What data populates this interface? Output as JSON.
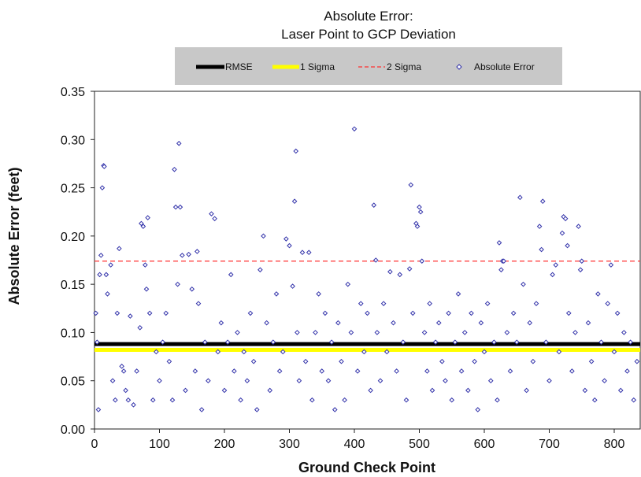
{
  "chart_data": {
    "type": "scatter",
    "title_lines": [
      "Absolute Error:",
      "Laser Point to GCP  Deviation"
    ],
    "xlabel": "Ground Check Point",
    "ylabel": "Absolute  Error  (feet)",
    "xlim": [
      0,
      840
    ],
    "ylim": [
      0,
      0.35
    ],
    "x_ticks": [
      0,
      100,
      200,
      300,
      400,
      500,
      600,
      700,
      800
    ],
    "y_ticks": [
      "0.00",
      "0.05",
      "0.10",
      "0.15",
      "0.20",
      "0.25",
      "0.30",
      "0.35"
    ],
    "grid": false,
    "legend_position": "top",
    "legend_bg": "#c8c8c8",
    "reference_lines": [
      {
        "name": "RMSE",
        "value": 0.088,
        "color": "#000000",
        "style": "solid"
      },
      {
        "name": "1 Sigma",
        "value": 0.082,
        "color": "#ffff00",
        "style": "solid"
      },
      {
        "name": "2 Sigma",
        "value": 0.174,
        "color": "#ff3333",
        "style": "dashed"
      }
    ],
    "series": [
      {
        "name": "Absolute Error",
        "color": "#3333aa",
        "marker": "diamond",
        "points": [
          [
            2,
            0.12
          ],
          [
            4,
            0.09
          ],
          [
            6,
            0.02
          ],
          [
            8,
            0.16
          ],
          [
            10,
            0.18
          ],
          [
            12,
            0.25
          ],
          [
            14,
            0.273
          ],
          [
            15,
            0.272
          ],
          [
            18,
            0.16
          ],
          [
            20,
            0.14
          ],
          [
            25,
            0.17
          ],
          [
            28,
            0.05
          ],
          [
            32,
            0.03
          ],
          [
            35,
            0.12
          ],
          [
            38,
            0.187
          ],
          [
            42,
            0.065
          ],
          [
            45,
            0.06
          ],
          [
            48,
            0.04
          ],
          [
            52,
            0.03
          ],
          [
            55,
            0.117
          ],
          [
            60,
            0.025
          ],
          [
            65,
            0.06
          ],
          [
            70,
            0.105
          ],
          [
            72,
            0.213
          ],
          [
            75,
            0.21
          ],
          [
            78,
            0.17
          ],
          [
            80,
            0.145
          ],
          [
            82,
            0.219
          ],
          [
            85,
            0.12
          ],
          [
            90,
            0.03
          ],
          [
            95,
            0.08
          ],
          [
            100,
            0.05
          ],
          [
            105,
            0.09
          ],
          [
            110,
            0.12
          ],
          [
            115,
            0.07
          ],
          [
            120,
            0.03
          ],
          [
            123,
            0.269
          ],
          [
            125,
            0.23
          ],
          [
            128,
            0.15
          ],
          [
            130,
            0.296
          ],
          [
            132,
            0.23
          ],
          [
            135,
            0.18
          ],
          [
            140,
            0.04
          ],
          [
            145,
            0.181
          ],
          [
            150,
            0.145
          ],
          [
            155,
            0.06
          ],
          [
            158,
            0.184
          ],
          [
            160,
            0.13
          ],
          [
            165,
            0.02
          ],
          [
            170,
            0.09
          ],
          [
            175,
            0.05
          ],
          [
            180,
            0.223
          ],
          [
            185,
            0.218
          ],
          [
            190,
            0.08
          ],
          [
            195,
            0.11
          ],
          [
            200,
            0.04
          ],
          [
            205,
            0.09
          ],
          [
            210,
            0.16
          ],
          [
            215,
            0.06
          ],
          [
            220,
            0.1
          ],
          [
            225,
            0.03
          ],
          [
            230,
            0.08
          ],
          [
            235,
            0.05
          ],
          [
            240,
            0.12
          ],
          [
            245,
            0.07
          ],
          [
            250,
            0.02
          ],
          [
            255,
            0.165
          ],
          [
            260,
            0.2
          ],
          [
            265,
            0.11
          ],
          [
            270,
            0.04
          ],
          [
            275,
            0.09
          ],
          [
            280,
            0.14
          ],
          [
            285,
            0.06
          ],
          [
            290,
            0.08
          ],
          [
            295,
            0.197
          ],
          [
            300,
            0.19
          ],
          [
            305,
            0.148
          ],
          [
            308,
            0.236
          ],
          [
            310,
            0.288
          ],
          [
            312,
            0.1
          ],
          [
            315,
            0.05
          ],
          [
            320,
            0.183
          ],
          [
            325,
            0.07
          ],
          [
            330,
            0.183
          ],
          [
            335,
            0.03
          ],
          [
            340,
            0.1
          ],
          [
            345,
            0.14
          ],
          [
            350,
            0.06
          ],
          [
            355,
            0.12
          ],
          [
            360,
            0.05
          ],
          [
            365,
            0.09
          ],
          [
            370,
            0.02
          ],
          [
            375,
            0.11
          ],
          [
            380,
            0.07
          ],
          [
            385,
            0.03
          ],
          [
            390,
            0.15
          ],
          [
            395,
            0.1
          ],
          [
            400,
            0.311
          ],
          [
            405,
            0.06
          ],
          [
            410,
            0.13
          ],
          [
            415,
            0.08
          ],
          [
            420,
            0.12
          ],
          [
            425,
            0.04
          ],
          [
            430,
            0.232
          ],
          [
            433,
            0.175
          ],
          [
            435,
            0.1
          ],
          [
            440,
            0.05
          ],
          [
            445,
            0.13
          ],
          [
            450,
            0.08
          ],
          [
            455,
            0.163
          ],
          [
            460,
            0.11
          ],
          [
            465,
            0.06
          ],
          [
            470,
            0.16
          ],
          [
            475,
            0.09
          ],
          [
            480,
            0.03
          ],
          [
            485,
            0.166
          ],
          [
            487,
            0.253
          ],
          [
            490,
            0.12
          ],
          [
            495,
            0.213
          ],
          [
            497,
            0.21
          ],
          [
            500,
            0.23
          ],
          [
            502,
            0.225
          ],
          [
            504,
            0.174
          ],
          [
            508,
            0.1
          ],
          [
            512,
            0.06
          ],
          [
            516,
            0.13
          ],
          [
            520,
            0.04
          ],
          [
            525,
            0.09
          ],
          [
            530,
            0.11
          ],
          [
            535,
            0.07
          ],
          [
            540,
            0.05
          ],
          [
            545,
            0.12
          ],
          [
            550,
            0.03
          ],
          [
            555,
            0.09
          ],
          [
            560,
            0.14
          ],
          [
            565,
            0.06
          ],
          [
            570,
            0.1
          ],
          [
            575,
            0.04
          ],
          [
            580,
            0.12
          ],
          [
            585,
            0.07
          ],
          [
            590,
            0.02
          ],
          [
            595,
            0.11
          ],
          [
            600,
            0.08
          ],
          [
            605,
            0.13
          ],
          [
            610,
            0.05
          ],
          [
            615,
            0.09
          ],
          [
            620,
            0.03
          ],
          [
            623,
            0.193
          ],
          [
            626,
            0.165
          ],
          [
            628,
            0.174
          ],
          [
            630,
            0.174
          ],
          [
            635,
            0.1
          ],
          [
            640,
            0.06
          ],
          [
            645,
            0.12
          ],
          [
            650,
            0.09
          ],
          [
            655,
            0.24
          ],
          [
            660,
            0.15
          ],
          [
            665,
            0.04
          ],
          [
            670,
            0.11
          ],
          [
            675,
            0.07
          ],
          [
            680,
            0.13
          ],
          [
            685,
            0.21
          ],
          [
            688,
            0.186
          ],
          [
            690,
            0.236
          ],
          [
            695,
            0.09
          ],
          [
            700,
            0.05
          ],
          [
            705,
            0.16
          ],
          [
            710,
            0.17
          ],
          [
            715,
            0.08
          ],
          [
            720,
            0.203
          ],
          [
            722,
            0.22
          ],
          [
            725,
            0.218
          ],
          [
            728,
            0.19
          ],
          [
            730,
            0.12
          ],
          [
            735,
            0.06
          ],
          [
            740,
            0.1
          ],
          [
            745,
            0.21
          ],
          [
            748,
            0.165
          ],
          [
            750,
            0.174
          ],
          [
            755,
            0.04
          ],
          [
            760,
            0.11
          ],
          [
            765,
            0.07
          ],
          [
            770,
            0.03
          ],
          [
            775,
            0.14
          ],
          [
            780,
            0.09
          ],
          [
            785,
            0.05
          ],
          [
            790,
            0.13
          ],
          [
            795,
            0.17
          ],
          [
            800,
            0.08
          ],
          [
            805,
            0.12
          ],
          [
            810,
            0.04
          ],
          [
            815,
            0.1
          ],
          [
            820,
            0.06
          ],
          [
            825,
            0.09
          ],
          [
            830,
            0.03
          ],
          [
            835,
            0.07
          ]
        ]
      }
    ],
    "legend_entries": [
      "RMSE",
      "1 Sigma",
      "2 Sigma",
      "Absolute Error"
    ]
  }
}
